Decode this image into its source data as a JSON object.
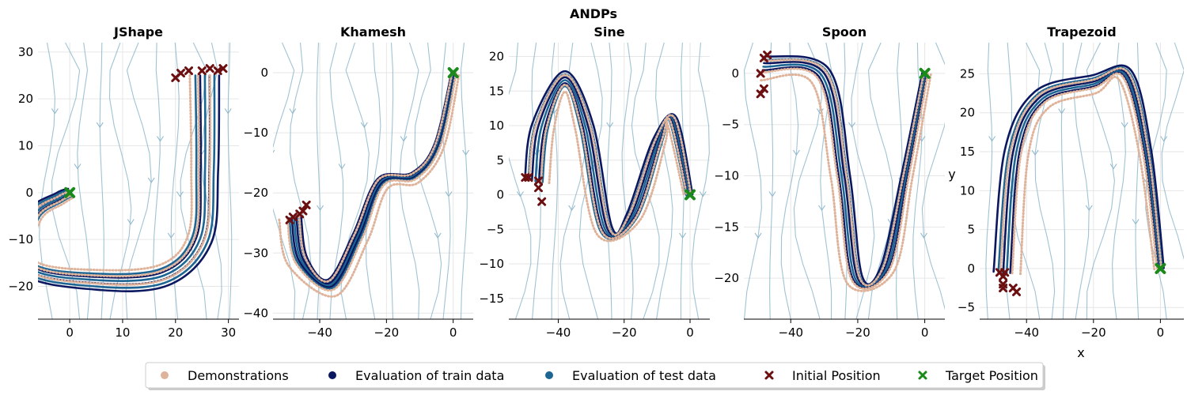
{
  "figure": {
    "suptitle": "ANDPs",
    "xlabel": "x",
    "ylabel": "y"
  },
  "legend": {
    "placement": "bottom-center",
    "items": [
      {
        "label": "Demonstrations",
        "marker": "dot",
        "color": "#dfb39a"
      },
      {
        "label": "Evaluation of train data",
        "marker": "dot",
        "color": "#0b175f"
      },
      {
        "label": "Evaluation of test data",
        "marker": "dot",
        "color": "#1d6592"
      },
      {
        "label": "Initial Position",
        "marker": "x",
        "color": "#6b0f10"
      },
      {
        "label": "Target Position",
        "marker": "x",
        "color": "#1a8a1a"
      }
    ]
  },
  "chart_data": [
    {
      "type": "line",
      "title": "JShape",
      "xlim": [
        -6,
        32
      ],
      "ylim": [
        -27,
        32
      ],
      "xticks": [
        0,
        10,
        20,
        30
      ],
      "yticks": [
        -20,
        -10,
        0,
        10,
        20,
        30
      ],
      "grid": true,
      "target": [
        0,
        0
      ],
      "initial_positions": [
        [
          20,
          24.5
        ],
        [
          21,
          25.5
        ],
        [
          22.5,
          26
        ],
        [
          25,
          26
        ],
        [
          26.5,
          26.5
        ],
        [
          28,
          26
        ],
        [
          29,
          26.5
        ]
      ],
      "demo_path": [
        [
          26,
          25
        ],
        [
          26,
          5
        ],
        [
          25,
          -10
        ],
        [
          18,
          -18
        ],
        [
          5,
          -19
        ],
        [
          -8,
          -16
        ],
        [
          -7,
          -5
        ],
        [
          -2,
          -1
        ],
        [
          0,
          0
        ]
      ],
      "offsets": [
        -5,
        -3,
        -1,
        1,
        3,
        5
      ]
    },
    {
      "type": "line",
      "title": "Khamesh",
      "xlim": [
        -54,
        6
      ],
      "ylim": [
        -41,
        5
      ],
      "xticks": [
        -40,
        -20,
        0
      ],
      "yticks": [
        -40,
        -30,
        -20,
        -10,
        0
      ],
      "grid": true,
      "target": [
        0,
        0
      ],
      "initial_positions": [
        [
          -49,
          -24.5
        ],
        [
          -48,
          -24
        ],
        [
          -46,
          -23.5
        ],
        [
          -45,
          -23
        ],
        [
          -44,
          -22
        ]
      ],
      "demo_path": [
        [
          -47,
          -24
        ],
        [
          -45,
          -31
        ],
        [
          -37,
          -35
        ],
        [
          -29,
          -27
        ],
        [
          -22,
          -18
        ],
        [
          -12,
          -17
        ],
        [
          -5,
          -12
        ],
        [
          0,
          0
        ]
      ],
      "offsets": [
        -2,
        -1,
        0,
        1,
        2,
        3
      ]
    },
    {
      "type": "line",
      "title": "Sine",
      "xlim": [
        -55,
        6
      ],
      "ylim": [
        -18,
        22
      ],
      "xticks": [
        -40,
        -20,
        0
      ],
      "yticks": [
        -15,
        -10,
        -5,
        0,
        5,
        10,
        15,
        20
      ],
      "grid": true,
      "target": [
        0,
        0
      ],
      "initial_positions": [
        [
          -50,
          2.5
        ],
        [
          -49,
          2.5
        ],
        [
          -46,
          2
        ],
        [
          -46,
          1
        ],
        [
          -45,
          -1
        ]
      ],
      "demo_path": [
        [
          -48,
          2
        ],
        [
          -46,
          10
        ],
        [
          -38,
          17
        ],
        [
          -31,
          10
        ],
        [
          -25,
          -5
        ],
        [
          -18,
          -3
        ],
        [
          -10,
          8
        ],
        [
          -5,
          11
        ],
        [
          0,
          0
        ]
      ],
      "offsets": [
        -3,
        -1.5,
        0,
        1.5,
        3,
        4.5
      ]
    },
    {
      "type": "line",
      "title": "Spoon",
      "xlim": [
        -54,
        6
      ],
      "ylim": [
        -24,
        3
      ],
      "xticks": [
        -40,
        -20,
        0
      ],
      "yticks": [
        -20,
        -15,
        -10,
        -5,
        0
      ],
      "grid": true,
      "target": [
        0,
        0
      ],
      "initial_positions": [
        [
          -48,
          1.5
        ],
        [
          -47,
          1.8
        ],
        [
          -49,
          0
        ],
        [
          -48,
          -1.5
        ],
        [
          -49,
          -2
        ]
      ],
      "demo_path": [
        [
          -48,
          1
        ],
        [
          -30,
          0
        ],
        [
          -24,
          -10
        ],
        [
          -20,
          -20
        ],
        [
          -12,
          -19
        ],
        [
          -6,
          -10
        ],
        [
          0,
          0
        ]
      ],
      "offsets": [
        -3,
        -1.5,
        0,
        1.5,
        3
      ]
    },
    {
      "type": "line",
      "title": "Trapezoid",
      "xlim": [
        -54,
        7
      ],
      "ylim": [
        -6.5,
        29
      ],
      "xticks": [
        -40,
        -20,
        0
      ],
      "yticks": [
        -5,
        0,
        5,
        10,
        15,
        20,
        25
      ],
      "grid": true,
      "target": [
        0,
        0
      ],
      "initial_positions": [
        [
          -48,
          -0.5
        ],
        [
          -47,
          -1
        ],
        [
          -46.5,
          -0.5
        ],
        [
          -47,
          -2
        ],
        [
          -44,
          -2.5
        ],
        [
          -43,
          -3
        ],
        [
          -47,
          -2.5
        ]
      ],
      "demo_path": [
        [
          -47,
          -0.5
        ],
        [
          -44,
          15
        ],
        [
          -36,
          22
        ],
        [
          -20,
          24
        ],
        [
          -10,
          25
        ],
        [
          -4,
          15
        ],
        [
          0,
          0
        ]
      ],
      "offsets": [
        -4,
        -2,
        0,
        1.5,
        3
      ]
    }
  ]
}
